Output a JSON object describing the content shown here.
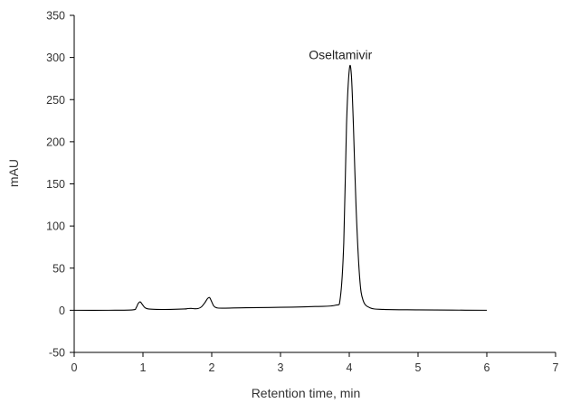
{
  "chart_data": {
    "type": "line",
    "title": "",
    "xlabel": "Retention time, min",
    "ylabel": "mAU",
    "xlim": [
      0,
      7
    ],
    "ylim": [
      -50,
      350
    ],
    "x_ticks": [
      0,
      1,
      2,
      3,
      4,
      5,
      6,
      7
    ],
    "y_ticks": [
      -50,
      0,
      50,
      100,
      150,
      200,
      250,
      300,
      350
    ],
    "grid": false,
    "legend": "none",
    "line_color": "#000000",
    "series": [
      {
        "x": [
          0.0,
          0.5,
          0.85,
          0.9,
          0.93,
          0.96,
          0.99,
          1.03,
          1.08,
          1.2,
          1.4,
          1.6,
          1.65,
          1.7,
          1.75,
          1.8,
          1.85,
          1.9,
          1.94,
          1.97,
          2.0,
          2.03,
          2.07,
          2.15,
          2.5,
          3.0,
          3.5,
          3.8,
          3.87,
          3.92,
          3.96,
          4.0,
          4.03,
          4.06,
          4.1,
          4.15,
          4.2,
          4.3,
          4.5,
          5.0,
          5.5,
          6.0
        ],
        "y": [
          0,
          0,
          0.5,
          3,
          8,
          10,
          7,
          3,
          1.5,
          1,
          1,
          1.5,
          2,
          2.2,
          1.8,
          2,
          4,
          9,
          14,
          15,
          10,
          5,
          3,
          2.5,
          3,
          3.5,
          4.5,
          6,
          15,
          80,
          220,
          285,
          280,
          220,
          120,
          40,
          12,
          3,
          1,
          0.5,
          0.2,
          0
        ]
      }
    ],
    "annotations": [
      {
        "text": "Oseltamivir",
        "x": 4.03,
        "y": 310
      }
    ]
  }
}
